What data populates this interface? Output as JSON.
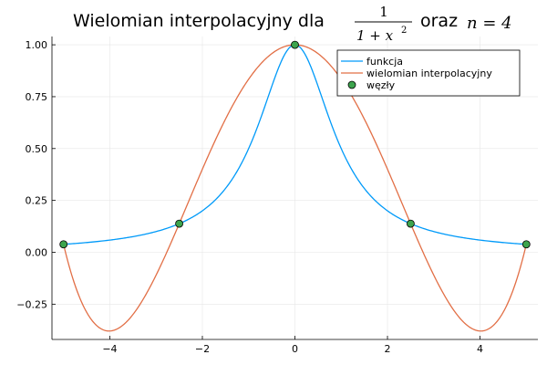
{
  "chart_data": {
    "type": "line",
    "title": {
      "prefix": "Wielomian interpolacyjny dla",
      "fraction_numerator": "1",
      "fraction_denominator": "1 + x",
      "fraction_exponent": "2",
      "middle": "oraz",
      "math_suffix": "n = 4"
    },
    "xlim": [
      -5.25,
      5.25
    ],
    "ylim": [
      -0.42,
      1.04
    ],
    "x_ticks": [
      -4,
      -2,
      0,
      2,
      4
    ],
    "x_tick_labels": [
      "−4",
      "−2",
      "0",
      "2",
      "4"
    ],
    "y_ticks": [
      -0.25,
      0,
      0.25,
      0.5,
      0.75,
      1.0
    ],
    "y_tick_labels": [
      "−0.25",
      "0.00",
      "0.25",
      "0.50",
      "0.75",
      "1.00"
    ],
    "grid": true,
    "legend_position": "top-right",
    "series": [
      {
        "name": "funkcja",
        "kind": "line",
        "color": "#009af9",
        "function": "1/(1+x^2)",
        "x_range": [
          -5,
          5
        ]
      },
      {
        "name": "wielomian interpolacyjny",
        "kind": "line",
        "color": "#e26f46",
        "function": "interpolating polynomial of degree 4",
        "x_range": [
          -5,
          5
        ]
      },
      {
        "name": "węzły",
        "kind": "scatter",
        "color": "#3da44d",
        "x": [
          -5,
          -2.5,
          0,
          2.5,
          5
        ],
        "y": [
          0.0385,
          0.1379,
          1.0,
          0.1379,
          0.0385
        ]
      }
    ]
  }
}
